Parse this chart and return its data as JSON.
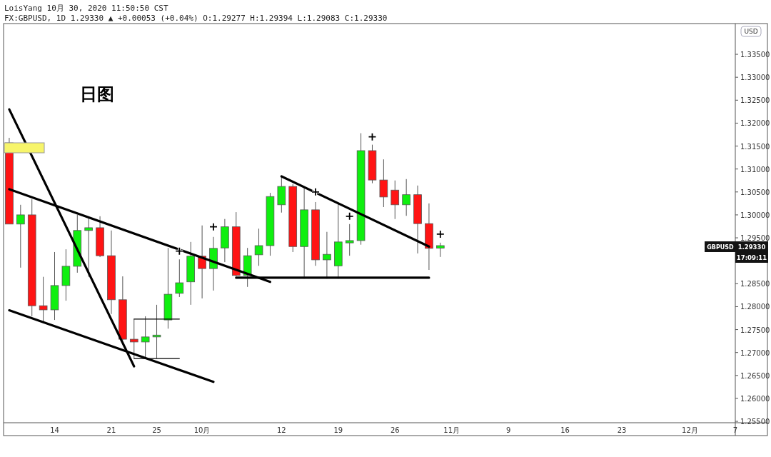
{
  "chart_data": {
    "type": "candlestick",
    "title": "LoisYang 10月 30, 2020 11:50:50 CST",
    "subtitle": "FX:GBPUSD, 1D 1.29330 ▲ +0.00053 (+0.04%) O:1.29277 H:1.29394 L:1.29083 C:1.29330",
    "categories": [
      null,
      null,
      null,
      null,
      "14",
      null,
      null,
      null,
      null,
      "21",
      null,
      null,
      null,
      "25",
      null,
      null,
      null,
      "10月",
      null,
      null,
      null,
      null,
      null,
      null,
      "12",
      null,
      null,
      null,
      null,
      "19",
      null,
      null,
      null,
      null,
      "26",
      null,
      null,
      null,
      null,
      "11月",
      null,
      null,
      null,
      null,
      "9",
      null,
      null,
      null,
      null,
      "16",
      null,
      null,
      null,
      null,
      "23",
      null,
      null,
      null,
      null,
      null,
      "12月",
      null,
      null,
      null,
      "7"
    ],
    "ohlc": [
      [
        1.3157,
        1.3168,
        1.298,
        1.298
      ],
      [
        1.298,
        1.3022,
        1.2885,
        1.3
      ],
      [
        1.3,
        1.3034,
        1.2779,
        1.2802
      ],
      [
        1.2802,
        1.2865,
        1.2768,
        1.2793
      ],
      [
        1.2793,
        1.2919,
        1.2771,
        1.2846
      ],
      [
        1.2846,
        1.2925,
        1.2813,
        1.2888
      ],
      [
        1.2888,
        1.3,
        1.2874,
        1.2966
      ],
      [
        1.2966,
        1.2994,
        1.2865,
        1.2972
      ],
      [
        1.2972,
        1.2997,
        1.2908,
        1.2911
      ],
      [
        1.2911,
        1.2966,
        1.2784,
        1.2815
      ],
      [
        1.2815,
        1.2866,
        1.2727,
        1.2729
      ],
      [
        1.2729,
        1.2773,
        1.2687,
        1.2723
      ],
      [
        1.2723,
        1.2779,
        1.2687,
        1.2734
      ],
      [
        1.2734,
        1.2804,
        1.2687,
        1.2738
      ],
      [
        1.2771,
        1.2928,
        1.2752,
        1.2827
      ],
      [
        1.2829,
        1.2903,
        1.2821,
        1.2852
      ],
      [
        1.2854,
        1.2941,
        1.2804,
        1.291
      ],
      [
        1.291,
        1.2977,
        1.2818,
        1.2883
      ],
      [
        1.2883,
        1.2952,
        1.2835,
        1.2927
      ],
      [
        1.2928,
        1.2991,
        1.2897,
        1.2974
      ],
      [
        1.2974,
        1.3006,
        1.2866,
        1.2868
      ],
      [
        1.2868,
        1.2928,
        1.2843,
        1.2911
      ],
      [
        1.2913,
        1.297,
        1.2889,
        1.2933
      ],
      [
        1.2933,
        1.3048,
        1.2911,
        1.304
      ],
      [
        1.3022,
        1.3084,
        1.3005,
        1.3062
      ],
      [
        1.3062,
        1.3067,
        1.2919,
        1.2931
      ],
      [
        1.2931,
        1.3059,
        1.2861,
        1.3011
      ],
      [
        1.3011,
        1.3028,
        1.2889,
        1.2902
      ],
      [
        1.2902,
        1.2963,
        1.2861,
        1.2914
      ],
      [
        1.2889,
        1.3025,
        1.2861,
        1.2941
      ],
      [
        1.2939,
        1.298,
        1.2911,
        1.2944
      ],
      [
        1.2944,
        1.3178,
        1.2935,
        1.314
      ],
      [
        1.314,
        1.3153,
        1.3069,
        1.3076
      ],
      [
        1.3076,
        1.3121,
        1.3017,
        1.3039
      ],
      [
        1.3054,
        1.3075,
        1.2991,
        1.3022
      ],
      [
        1.3022,
        1.3078,
        1.2998,
        1.3044
      ],
      [
        1.3044,
        1.3064,
        1.2916,
        1.2981
      ],
      [
        1.2981,
        1.3025,
        1.288,
        1.2927
      ],
      [
        1.29277,
        1.29394,
        1.29083,
        1.2933
      ],
      null,
      null,
      null,
      null,
      null,
      null,
      null,
      null,
      null,
      null,
      null,
      null,
      null,
      null,
      null,
      null,
      null,
      null,
      null,
      null,
      null,
      null,
      null,
      null,
      null,
      null
    ],
    "colors": [
      "#ff1414",
      "#0fef0f",
      "#ff1414",
      "#ff1414",
      "#0fef0f",
      "#0fef0f",
      "#0fef0f",
      "#0fef0f",
      "#ff1414",
      "#ff1414",
      "#ff1414",
      "#ff1414",
      "#0fef0f",
      "#0fef0f",
      "#0fef0f",
      "#0fef0f",
      "#0fef0f",
      "#ff1414",
      "#0fef0f",
      "#0fef0f",
      "#ff1414",
      "#0fef0f",
      "#0fef0f",
      "#0fef0f",
      "#0fef0f",
      "#ff1414",
      "#0fef0f",
      "#ff1414",
      "#0fef0f",
      "#0fef0f",
      "#0fef0f",
      "#0fef0f",
      "#ff1414",
      "#ff1414",
      "#ff1414",
      "#0fef0f",
      "#ff1414",
      "#ff1414",
      "#0fef0f",
      null,
      null,
      null,
      null,
      null,
      null,
      null,
      null,
      null,
      null,
      null,
      null,
      null,
      null,
      null,
      null,
      null,
      null,
      null,
      null,
      null,
      null,
      null,
      null,
      null,
      null
    ],
    "series": [
      {
        "type": "line",
        "color": "#000000",
        "values": [
          1.323,
          null,
          null,
          null,
          null,
          null,
          null,
          null,
          null,
          null,
          null,
          1.267,
          null,
          null,
          null,
          null,
          null,
          null,
          null,
          null,
          null,
          null,
          null,
          null,
          null,
          null,
          null,
          null,
          null,
          null,
          null,
          null,
          null,
          null,
          null,
          null,
          null,
          null,
          null,
          null,
          null,
          null,
          null,
          null,
          null,
          null,
          null,
          null,
          null,
          null,
          null,
          null,
          null,
          null,
          null,
          null,
          null,
          null,
          null,
          null,
          null,
          null,
          null,
          null,
          null
        ]
      },
      {
        "type": "line",
        "color": "#000000",
        "values": [
          1.3056,
          null,
          null,
          null,
          null,
          null,
          null,
          null,
          null,
          null,
          null,
          null,
          null,
          null,
          null,
          null,
          null,
          null,
          null,
          null,
          null,
          null,
          null,
          1.2854,
          null,
          null,
          null,
          null,
          null,
          null,
          null,
          null,
          null,
          null,
          null,
          null,
          null,
          null,
          null,
          null,
          null,
          null,
          null,
          null,
          null,
          null,
          null,
          null,
          null,
          null,
          null,
          null,
          null,
          null,
          null,
          null,
          null,
          null,
          null,
          null,
          null,
          null,
          null,
          null,
          null
        ]
      },
      {
        "type": "line",
        "color": "#000000",
        "values": [
          1.2792,
          null,
          null,
          null,
          null,
          null,
          null,
          null,
          null,
          null,
          null,
          null,
          null,
          null,
          null,
          null,
          null,
          null,
          1.2636,
          null,
          null,
          null,
          null,
          null,
          null,
          null,
          null,
          null,
          null,
          null,
          null,
          null,
          null,
          null,
          null,
          null,
          null,
          null,
          null,
          null,
          null,
          null,
          null,
          null,
          null,
          null,
          null,
          null,
          null,
          null,
          null,
          null,
          null,
          null,
          null,
          null,
          null,
          null,
          null,
          null,
          null,
          null,
          null,
          null,
          null
        ]
      },
      {
        "type": "line",
        "color": "#000000",
        "values": [
          null,
          null,
          null,
          null,
          null,
          null,
          null,
          null,
          null,
          null,
          null,
          null,
          null,
          null,
          null,
          null,
          null,
          null,
          null,
          null,
          1.2863,
          null,
          null,
          null,
          null,
          null,
          null,
          null,
          null,
          null,
          null,
          null,
          null,
          null,
          null,
          null,
          null,
          1.2863,
          null,
          null,
          null,
          null,
          null,
          null,
          null,
          null,
          null,
          null,
          null,
          null,
          null,
          null,
          null,
          null,
          null,
          null,
          null,
          null,
          null,
          null,
          null,
          null,
          null,
          null,
          null
        ]
      },
      {
        "type": "line",
        "color": "#000000",
        "values": [
          null,
          null,
          null,
          null,
          null,
          null,
          null,
          null,
          null,
          null,
          null,
          null,
          null,
          null,
          null,
          null,
          null,
          null,
          null,
          null,
          null,
          null,
          null,
          null,
          1.3084,
          null,
          null,
          null,
          null,
          null,
          null,
          null,
          null,
          null,
          null,
          null,
          null,
          1.2931,
          null,
          null,
          null,
          null,
          null,
          null,
          null,
          null,
          null,
          null,
          null,
          null,
          null,
          null,
          null,
          null,
          null,
          null,
          null,
          null,
          null,
          null,
          null,
          null,
          null,
          null,
          null
        ]
      },
      {
        "type": "line",
        "color": "#000000",
        "values": [
          null,
          null,
          null,
          null,
          null,
          null,
          null,
          null,
          null,
          null,
          null,
          1.2773,
          null,
          null,
          null,
          1.2773,
          null,
          null,
          null,
          null,
          null,
          null,
          null,
          null,
          null,
          null,
          null,
          null,
          null,
          null,
          null,
          null,
          null,
          null,
          null,
          null,
          null,
          null,
          null,
          null,
          null,
          null,
          null,
          null,
          null,
          null,
          null,
          null,
          null,
          null,
          null,
          null,
          null,
          null,
          null,
          null,
          null,
          null,
          null,
          null,
          null,
          null,
          null,
          null,
          null
        ]
      },
      {
        "type": "line",
        "color": "#000000",
        "values": [
          null,
          null,
          null,
          null,
          null,
          null,
          null,
          null,
          null,
          null,
          null,
          1.2687,
          null,
          null,
          null,
          1.2687,
          null,
          null,
          null,
          null,
          null,
          null,
          null,
          null,
          null,
          null,
          null,
          null,
          null,
          null,
          null,
          null,
          null,
          null,
          null,
          null,
          null,
          null,
          null,
          null,
          null,
          null,
          null,
          null,
          null,
          null,
          null,
          null,
          null,
          null,
          null,
          null,
          null,
          null,
          null,
          null,
          null,
          null,
          null,
          null,
          null,
          null,
          null,
          null,
          null
        ]
      },
      {
        "type": "scatter",
        "color": "#000000",
        "marker": "cross",
        "values": [
          null,
          null,
          null,
          null,
          null,
          null,
          null,
          null,
          null,
          null,
          null,
          null,
          null,
          null,
          null,
          1.2921,
          null,
          null,
          1.2974,
          null,
          null,
          null,
          null,
          null,
          null,
          null,
          null,
          1.305,
          null,
          null,
          1.2997,
          null,
          1.317,
          null,
          null,
          null,
          null,
          null,
          1.2958,
          null,
          null,
          null,
          null,
          null,
          null,
          null,
          null,
          null,
          null,
          null,
          null,
          null,
          null,
          null,
          null,
          null,
          null,
          null,
          null,
          null,
          null,
          null,
          null,
          null,
          null
        ]
      }
    ],
    "ylim": [
      1.2547,
      1.3417
    ],
    "yticks": [
      {
        "value": 1.255,
        "label": "1.25500"
      },
      {
        "value": 1.26,
        "label": "1.26000"
      },
      {
        "value": 1.265,
        "label": "1.26500"
      },
      {
        "value": 1.27,
        "label": "1.27000"
      },
      {
        "value": 1.275,
        "label": "1.27500"
      },
      {
        "value": 1.28,
        "label": "1.28000"
      },
      {
        "value": 1.285,
        "label": "1.28500"
      },
      {
        "value": 1.29,
        "label": null
      },
      {
        "value": 1.295,
        "label": "1.29500"
      },
      {
        "value": 1.3,
        "label": "1.30000"
      },
      {
        "value": 1.305,
        "label": "1.30500"
      },
      {
        "value": 1.31,
        "label": "1.31000"
      },
      {
        "value": 1.315,
        "label": "1.31500"
      },
      {
        "value": 1.32,
        "label": "1.32000"
      },
      {
        "value": 1.325,
        "label": "1.32500"
      },
      {
        "value": 1.33,
        "label": "1.33000"
      },
      {
        "value": 1.335,
        "label": "1.33500"
      }
    ],
    "annotations": [
      "日图",
      "USD",
      "GBPUSD",
      "1.29330",
      "17:09:11"
    ]
  }
}
